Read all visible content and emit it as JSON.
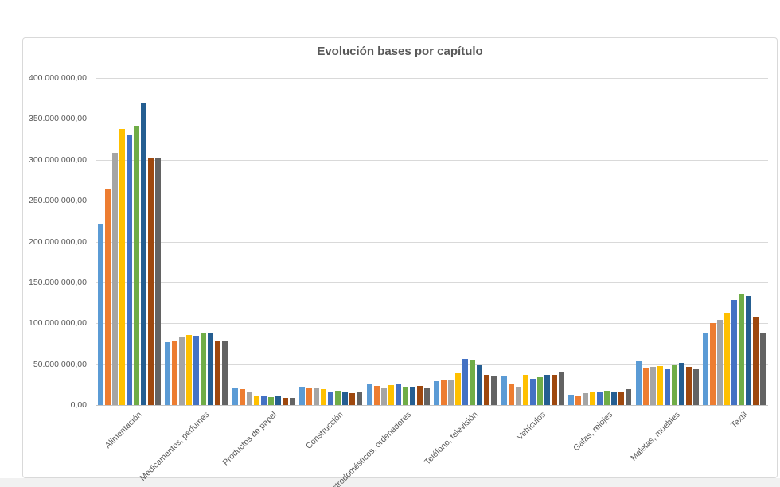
{
  "page": {
    "background_color": "#ffffff",
    "footer_strip_color": "#f1f1f1",
    "panel_border_color": "#d9d9d9",
    "gridline_color": "#d9d9d9",
    "text_color": "#595959"
  },
  "chart_data": {
    "type": "bar",
    "title": "Evolución bases por capítulo",
    "grid": true,
    "legend": "none",
    "categories": [
      "Alimentación",
      "Medicamentos, perfumes",
      "Productos de papel",
      "Construcción",
      "Electrodomésticos, ordenadores",
      "Teléfono, televisión",
      "Vehículos",
      "Gafas, relojes",
      "Maletas, muebles",
      "Textil"
    ],
    "series": [
      {
        "color": "#5B9BD5",
        "values": [
          222000000,
          77000000,
          21000000,
          22000000,
          25000000,
          29000000,
          36000000,
          13000000,
          54000000,
          88000000
        ]
      },
      {
        "color": "#ED7D31",
        "values": [
          265000000,
          78000000,
          19000000,
          21000000,
          23000000,
          31000000,
          26000000,
          11000000,
          46000000,
          100000000
        ]
      },
      {
        "color": "#A5A5A5",
        "values": [
          309000000,
          83000000,
          16000000,
          20000000,
          20000000,
          31000000,
          22000000,
          15000000,
          47000000,
          104000000
        ]
      },
      {
        "color": "#FFC000",
        "values": [
          338000000,
          86000000,
          11000000,
          19000000,
          24000000,
          39000000,
          37000000,
          17000000,
          48000000,
          113000000
        ]
      },
      {
        "color": "#4472C4",
        "values": [
          330000000,
          85000000,
          11000000,
          17000000,
          25000000,
          56000000,
          32000000,
          16000000,
          44000000,
          128000000
        ]
      },
      {
        "color": "#70AD47",
        "values": [
          342000000,
          88000000,
          10000000,
          18000000,
          22000000,
          55000000,
          34000000,
          18000000,
          49000000,
          136000000
        ]
      },
      {
        "color": "#255E91",
        "values": [
          369000000,
          89000000,
          11000000,
          17000000,
          22000000,
          49000000,
          37000000,
          16000000,
          52000000,
          133000000
        ]
      },
      {
        "color": "#9E480E",
        "values": [
          302000000,
          78000000,
          9000000,
          15000000,
          23000000,
          37000000,
          37000000,
          17000000,
          47000000,
          108000000
        ]
      },
      {
        "color": "#636363",
        "values": [
          303000000,
          79000000,
          9000000,
          17000000,
          21000000,
          36000000,
          41000000,
          19000000,
          44000000,
          88000000
        ]
      }
    ],
    "y_axis": {
      "min": 0,
      "max": 400000000,
      "step": 50000000,
      "tick_labels": [
        "400.000.000,00",
        "350.000.000,00",
        "300.000.000,00",
        "250.000.000,00",
        "200.000.000,00",
        "150.000.000,00",
        "100.000.000,00",
        "50.000.000,00",
        "0,00"
      ]
    }
  }
}
